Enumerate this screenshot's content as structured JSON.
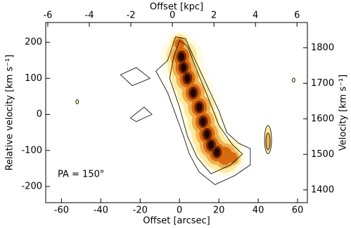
{
  "chart_data": {
    "type": "pv-diagram",
    "xlabel": "Offset [arcsec]",
    "ylabel": "Relative velocity [km s⁻¹]",
    "x2label": "Offset [kpc]",
    "y2label": "Velocity [km s⁻¹]",
    "annotation": "PA = 150°",
    "xlim": [
      -68,
      65
    ],
    "xticks": [
      -60,
      -40,
      -20,
      0,
      20,
      40,
      60
    ],
    "ylim": [
      -245,
      255
    ],
    "yticks": [
      -200,
      -100,
      0,
      100,
      200
    ],
    "x2lim": [
      -6.1,
      6.5
    ],
    "x2ticks": [
      -6,
      -4,
      -2,
      0,
      2,
      4,
      6
    ],
    "y2lim": [
      1364,
      1871
    ],
    "y2ticks": [
      1400,
      1500,
      1600,
      1700,
      1800
    ]
  }
}
